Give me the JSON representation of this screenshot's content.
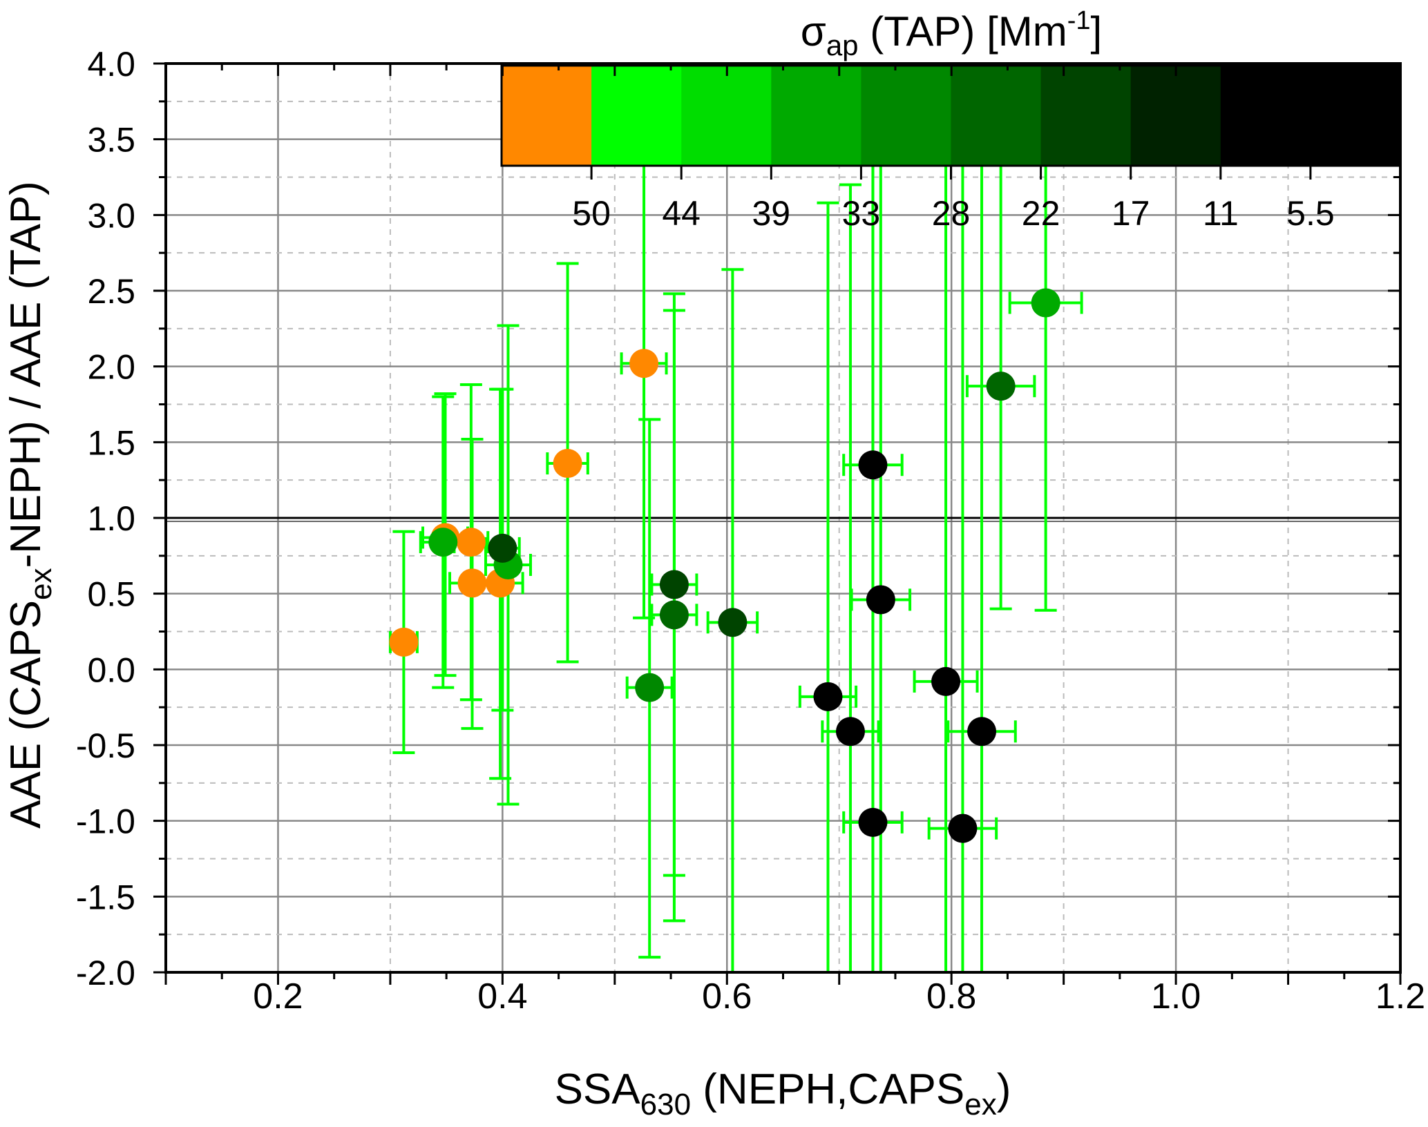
{
  "chart_data": {
    "type": "scatter",
    "xlabel": {
      "main": "SSA",
      "sub": "630",
      "rest": " (NEPH,CAPS",
      "sub2": "ex",
      "end": ")"
    },
    "ylabel": {
      "main": "AAE (CAPS",
      "sub": "ex",
      "rest": "-NEPH) / AAE (TAP)"
    },
    "xlim": [
      0.1,
      1.2
    ],
    "ylim": [
      -2.0,
      4.0
    ],
    "x_ticks": [
      "0.2",
      "0.4",
      "0.6",
      "0.8",
      "1.0",
      "1.2"
    ],
    "y_ticks": [
      "-2.0",
      "-1.5",
      "-1.0",
      "-0.5",
      "0.0",
      "0.5",
      "1.0",
      "1.5",
      "2.0",
      "2.5",
      "3.0",
      "3.5",
      "4.0"
    ],
    "grid": true,
    "reference_line_y": 1.0,
    "colorbar": {
      "title": {
        "main": "σ",
        "sub": "ap",
        "rest": " (TAP) [Mm",
        "sup": "-1",
        "end": "]"
      },
      "colors": [
        "#FF8800",
        "#00FF00",
        "#00DD00",
        "#00AA00",
        "#008800",
        "#006600",
        "#004400",
        "#002200",
        "#000000",
        "#000000"
      ],
      "tick_labels": [
        "50",
        "44",
        "39",
        "33",
        "28",
        "22",
        "17",
        "11",
        "5.5"
      ],
      "placement": "top-right"
    },
    "points": [
      {
        "x": 0.312,
        "y": 0.18,
        "y_low": -0.55,
        "y_high": 0.91,
        "xerr": 0.012,
        "color": "#FF8800"
      },
      {
        "x": 0.349,
        "y": 0.87,
        "y_low": -0.04,
        "y_high": 1.82,
        "xerr": 0.02,
        "color": "#FF8800"
      },
      {
        "x": 0.372,
        "y": 0.84,
        "y_low": -0.2,
        "y_high": 1.88,
        "xerr": 0.015,
        "color": "#FF8800"
      },
      {
        "x": 0.373,
        "y": 0.57,
        "y_low": -0.39,
        "y_high": 1.52,
        "xerr": 0.02,
        "color": "#FF8800"
      },
      {
        "x": 0.398,
        "y": 0.57,
        "y_low": -0.72,
        "y_high": 1.85,
        "xerr": 0.02,
        "color": "#FF8800"
      },
      {
        "x": 0.458,
        "y": 1.36,
        "y_low": 0.05,
        "y_high": 2.68,
        "xerr": 0.018,
        "color": "#FF8800"
      },
      {
        "x": 0.526,
        "y": 2.02,
        "y_low": 0.34,
        "y_high": 4.0,
        "xerr": 0.02,
        "color": "#FF8800"
      },
      {
        "x": 0.347,
        "y": 0.84,
        "y_low": -0.12,
        "y_high": 1.8,
        "xerr": 0.02,
        "color": "#00AA00"
      },
      {
        "x": 0.405,
        "y": 0.69,
        "y_low": -0.89,
        "y_high": 2.27,
        "xerr": 0.02,
        "color": "#00AA00"
      },
      {
        "x": 0.4,
        "y": 0.8,
        "y_low": -0.27,
        "y_high": 1.85,
        "xerr": 0.015,
        "color": "#004400"
      },
      {
        "x": 0.553,
        "y": 0.56,
        "y_low": -1.36,
        "y_high": 2.48,
        "xerr": 0.02,
        "color": "#004400"
      },
      {
        "x": 0.553,
        "y": 0.36,
        "y_low": -1.66,
        "y_high": 2.37,
        "xerr": 0.02,
        "color": "#006600"
      },
      {
        "x": 0.531,
        "y": -0.12,
        "y_low": -1.9,
        "y_high": 1.65,
        "xerr": 0.02,
        "color": "#008800"
      },
      {
        "x": 0.605,
        "y": 0.31,
        "y_low": -2.0,
        "y_high": 2.64,
        "xerr": 0.022,
        "color": "#004400"
      },
      {
        "x": 0.884,
        "y": 2.42,
        "y_low": 0.39,
        "y_high": 4.0,
        "xerr": 0.032,
        "color": "#00AA00"
      },
      {
        "x": 0.844,
        "y": 1.87,
        "y_low": 0.4,
        "y_high": 4.0,
        "xerr": 0.03,
        "color": "#006600"
      },
      {
        "x": 0.73,
        "y": 1.35,
        "y_low": -2.0,
        "y_high": 4.0,
        "xerr": 0.026,
        "color": "#000000"
      },
      {
        "x": 0.737,
        "y": 0.46,
        "y_low": -2.0,
        "y_high": 4.0,
        "xerr": 0.026,
        "color": "#000000"
      },
      {
        "x": 0.69,
        "y": -0.18,
        "y_low": -2.0,
        "y_high": 3.08,
        "xerr": 0.025,
        "color": "#000000"
      },
      {
        "x": 0.71,
        "y": -0.41,
        "y_low": -2.0,
        "y_high": 3.2,
        "xerr": 0.025,
        "color": "#000000"
      },
      {
        "x": 0.795,
        "y": -0.08,
        "y_low": -2.0,
        "y_high": 4.0,
        "xerr": 0.028,
        "color": "#000000"
      },
      {
        "x": 0.827,
        "y": -0.41,
        "y_low": -2.0,
        "y_high": 4.0,
        "xerr": 0.03,
        "color": "#000000"
      },
      {
        "x": 0.73,
        "y": -1.01,
        "y_low": -2.0,
        "y_high": 4.0,
        "xerr": 0.026,
        "color": "#000000"
      },
      {
        "x": 0.81,
        "y": -1.05,
        "y_low": -2.0,
        "y_high": 4.0,
        "xerr": 0.03,
        "color": "#000000"
      }
    ]
  }
}
